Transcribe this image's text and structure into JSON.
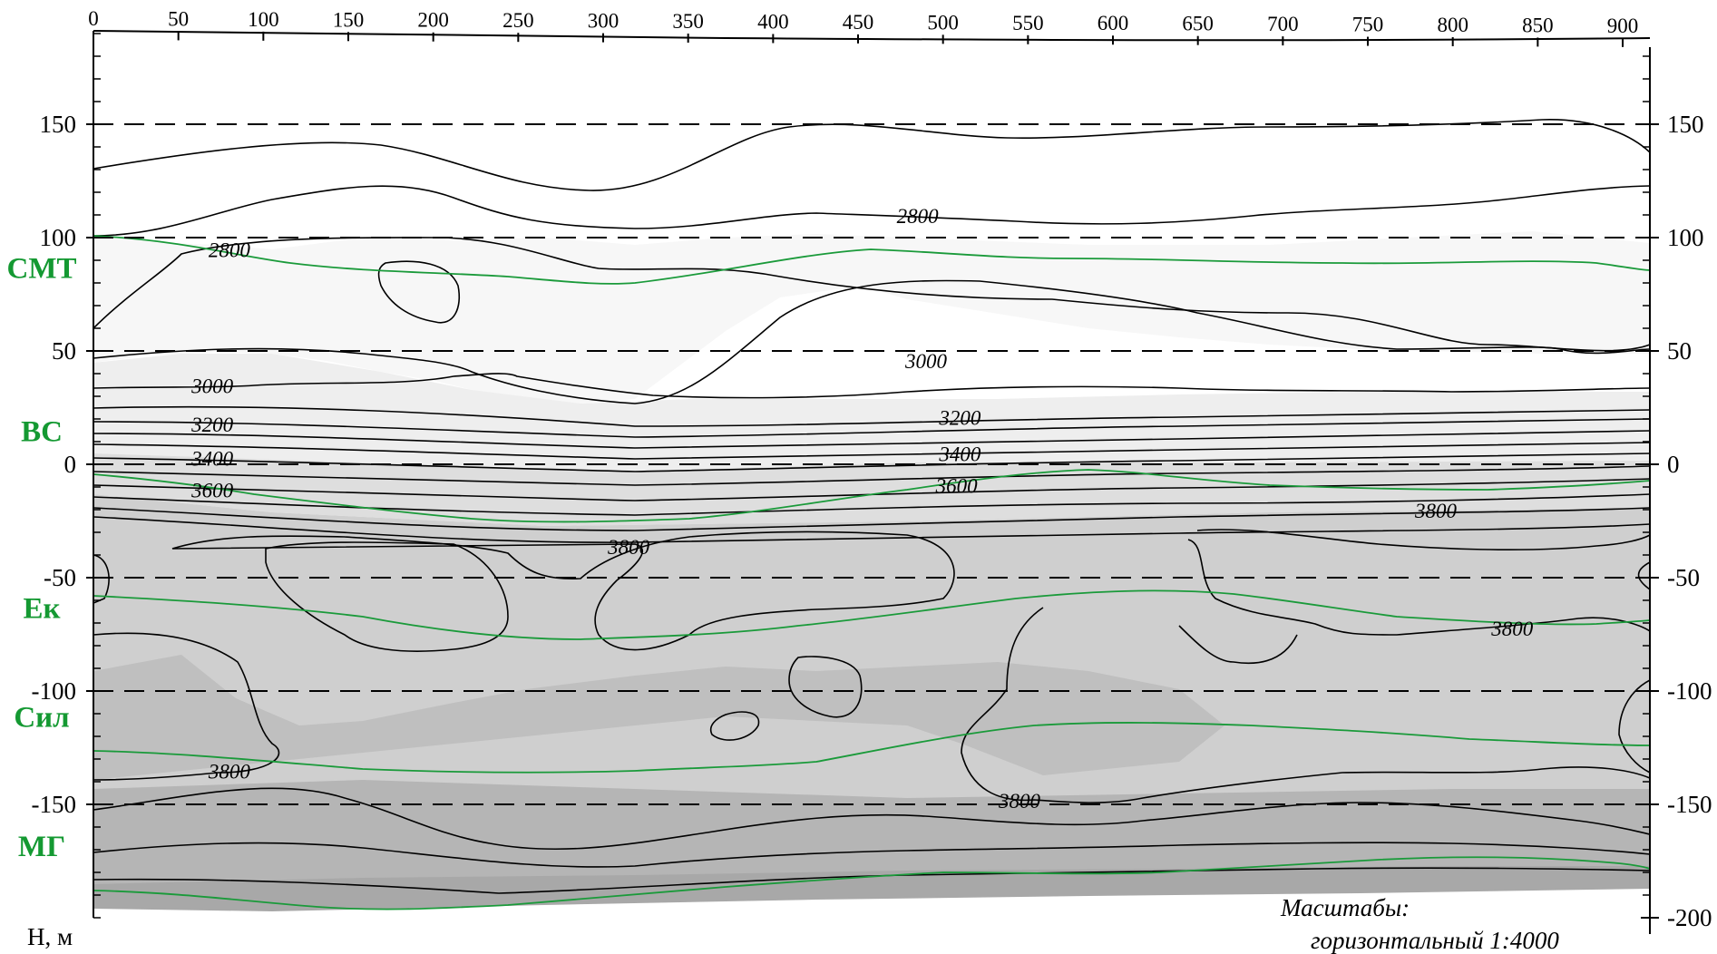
{
  "chart_data": {
    "type": "contour",
    "ylabel": "Н, м",
    "x_ticks": [
      0,
      50,
      100,
      150,
      200,
      250,
      300,
      350,
      400,
      450,
      500,
      550,
      600,
      650,
      700,
      750,
      800,
      850,
      900
    ],
    "y_ticks_left": [
      "150",
      "100",
      "50",
      "0",
      "-50",
      "-100",
      "-150"
    ],
    "y_ticks_right": [
      "150",
      "100",
      "50",
      "0",
      "-50",
      "-100",
      "-150",
      "-200"
    ],
    "y_tick_values_left": [
      150,
      100,
      50,
      0,
      -50,
      -100,
      -150
    ],
    "y_tick_values_right": [
      150,
      100,
      50,
      0,
      -50,
      -100,
      -150,
      -200
    ],
    "xlim": [
      0,
      910
    ],
    "ylim": [
      -200,
      190
    ],
    "gridlines_y": [
      150,
      100,
      50,
      0,
      -50,
      -100,
      -150
    ],
    "contour_levels": [
      2800,
      3000,
      3200,
      3400,
      3600,
      3800
    ],
    "contour_labels": [
      {
        "text": "2800",
        "x": 80,
        "y": 93
      },
      {
        "text": "2800",
        "x": 485,
        "y": 108
      },
      {
        "text": "3000",
        "x": 70,
        "y": 33
      },
      {
        "text": "3000",
        "x": 490,
        "y": 44
      },
      {
        "text": "3200",
        "x": 70,
        "y": 16
      },
      {
        "text": "3200",
        "x": 510,
        "y": 19
      },
      {
        "text": "3400",
        "x": 70,
        "y": 1
      },
      {
        "text": "3400",
        "x": 510,
        "y": 3
      },
      {
        "text": "3600",
        "x": 70,
        "y": -13
      },
      {
        "text": "3600",
        "x": 508,
        "y": -11
      },
      {
        "text": "3800",
        "x": 790,
        "y": -22
      },
      {
        "text": "3800",
        "x": 315,
        "y": -38
      },
      {
        "text": "3800",
        "x": 835,
        "y": -74
      },
      {
        "text": "3800",
        "x": 80,
        "y": -137
      },
      {
        "text": "3800",
        "x": 545,
        "y": -150
      }
    ],
    "layers": [
      {
        "name": "СМТ",
        "y": 87
      },
      {
        "name": "ВС",
        "y": 15
      },
      {
        "name": "Ек",
        "y": -63
      },
      {
        "name": "Сил",
        "y": -111
      },
      {
        "name": "МГ",
        "y": -168
      }
    ],
    "scale_title": "Масштабы:",
    "scale_horizontal": "горизонтальный 1:4000"
  },
  "colors": {
    "fill_lightest": "#f7f7f7",
    "fill_light": "#efefef",
    "fill_mid": "#d8d8d8",
    "fill_dark": "#bdbdbd",
    "fill_darker": "#acacac",
    "layer_lines": "#1a9a3a",
    "layer_labels": "#149932"
  }
}
